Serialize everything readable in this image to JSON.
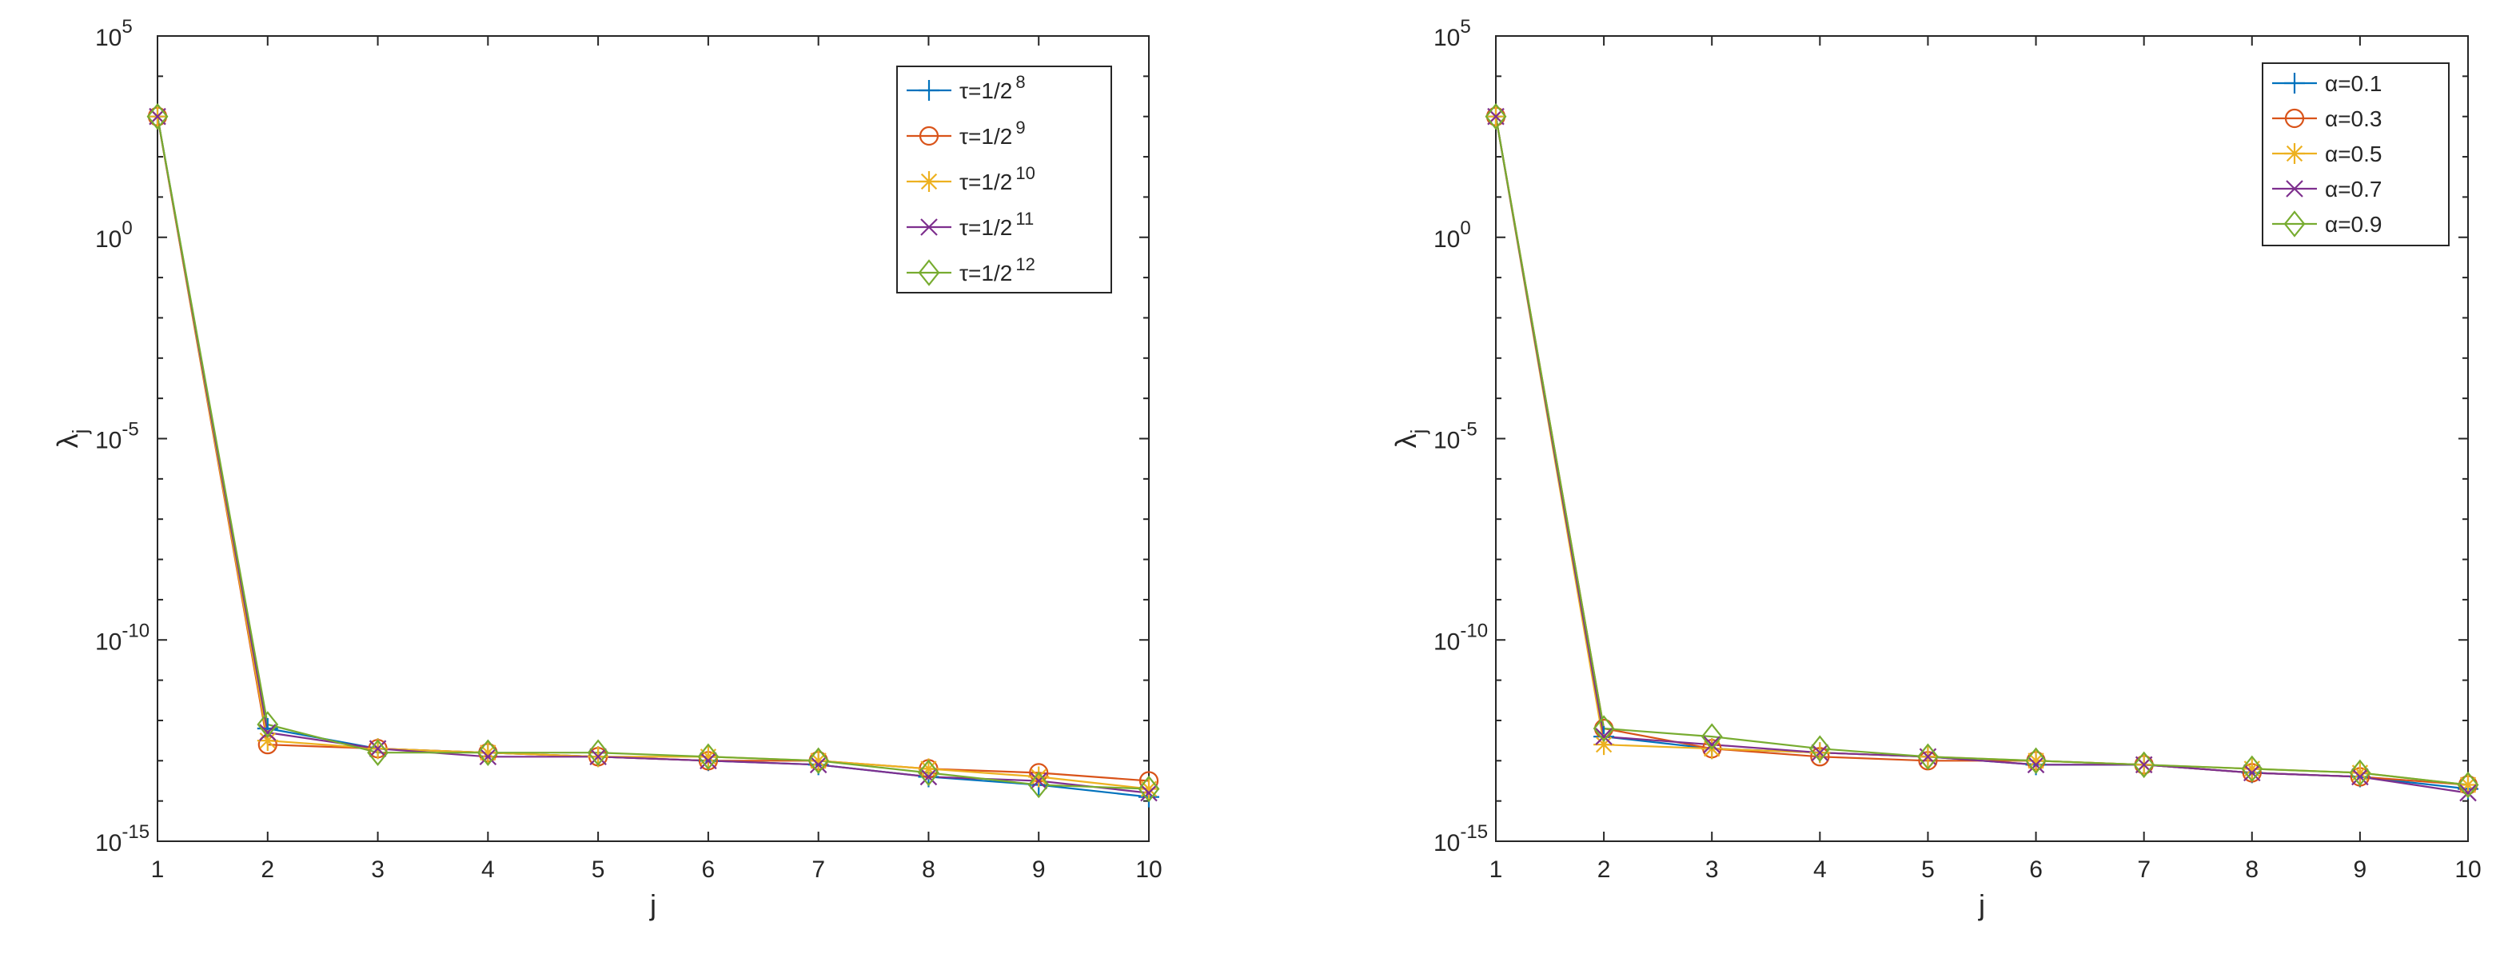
{
  "chart_data": [
    {
      "type": "line",
      "title": "",
      "xlabel": "j",
      "ylabel_base": "λ",
      "ylabel_sub": "j",
      "yscale": "log",
      "xlim": [
        1,
        10
      ],
      "ylim_exp": [
        -15,
        5
      ],
      "x_ticks": [
        1,
        2,
        3,
        4,
        5,
        6,
        7,
        8,
        9,
        10
      ],
      "y_tick_exps": [
        -15,
        -10,
        -5,
        0,
        5
      ],
      "grid": false,
      "legend_position": "top-right",
      "x": [
        1,
        2,
        3,
        4,
        5,
        6,
        7,
        8,
        9,
        10
      ],
      "series": [
        {
          "label_base": "τ=1/2",
          "label_sup": "8",
          "marker": "plus",
          "color": "#0072BD",
          "log10_values": [
            3.0,
            -12.2,
            -12.7,
            -12.8,
            -12.9,
            -13.0,
            -13.1,
            -13.4,
            -13.6,
            -13.9
          ]
        },
        {
          "label_base": "τ=1/2",
          "label_sup": "9",
          "marker": "circle",
          "color": "#D95319",
          "log10_values": [
            3.0,
            -12.6,
            -12.7,
            -12.8,
            -12.9,
            -13.0,
            -13.0,
            -13.2,
            -13.3,
            -13.5
          ]
        },
        {
          "label_base": "τ=1/2",
          "label_sup": "10",
          "marker": "star",
          "color": "#EDB120",
          "log10_values": [
            3.0,
            -12.5,
            -12.7,
            -12.8,
            -12.9,
            -12.9,
            -13.0,
            -13.2,
            -13.4,
            -13.7
          ]
        },
        {
          "label_base": "τ=1/2",
          "label_sup": "11",
          "marker": "x",
          "color": "#7E2F8E",
          "log10_values": [
            3.0,
            -12.3,
            -12.7,
            -12.9,
            -12.9,
            -13.0,
            -13.1,
            -13.4,
            -13.5,
            -13.8
          ]
        },
        {
          "label_base": "τ=1/2",
          "label_sup": "12",
          "marker": "diamond",
          "color": "#77AC30",
          "log10_values": [
            3.0,
            -12.1,
            -12.8,
            -12.8,
            -12.8,
            -12.9,
            -13.0,
            -13.3,
            -13.6,
            -13.7
          ]
        }
      ]
    },
    {
      "type": "line",
      "title": "",
      "xlabel": "j",
      "ylabel_base": "λ",
      "ylabel_sub": "j",
      "yscale": "log",
      "xlim": [
        1,
        10
      ],
      "ylim_exp": [
        -15,
        5
      ],
      "x_ticks": [
        1,
        2,
        3,
        4,
        5,
        6,
        7,
        8,
        9,
        10
      ],
      "y_tick_exps": [
        -15,
        -10,
        -5,
        0,
        5
      ],
      "grid": false,
      "legend_position": "top-right",
      "x": [
        1,
        2,
        3,
        4,
        5,
        6,
        7,
        8,
        9,
        10
      ],
      "series": [
        {
          "label_base": "α=0.1",
          "label_sup": "",
          "marker": "plus",
          "color": "#0072BD",
          "log10_values": [
            3.0,
            -12.4,
            -12.7,
            -12.8,
            -12.9,
            -13.1,
            -13.1,
            -13.3,
            -13.4,
            -13.7
          ]
        },
        {
          "label_base": "α=0.3",
          "label_sup": "",
          "marker": "circle",
          "color": "#D95319",
          "log10_values": [
            3.0,
            -12.2,
            -12.7,
            -12.9,
            -13.0,
            -13.0,
            -13.1,
            -13.3,
            -13.4,
            -13.6
          ]
        },
        {
          "label_base": "α=0.5",
          "label_sup": "",
          "marker": "star",
          "color": "#EDB120",
          "log10_values": [
            3.0,
            -12.6,
            -12.7,
            -12.8,
            -12.9,
            -13.0,
            -13.1,
            -13.2,
            -13.3,
            -13.6
          ]
        },
        {
          "label_base": "α=0.7",
          "label_sup": "",
          "marker": "x",
          "color": "#7E2F8E",
          "log10_values": [
            3.0,
            -12.4,
            -12.6,
            -12.8,
            -12.9,
            -13.1,
            -13.1,
            -13.3,
            -13.4,
            -13.8
          ]
        },
        {
          "label_base": "α=0.9",
          "label_sup": "",
          "marker": "diamond",
          "color": "#77AC30",
          "log10_values": [
            3.0,
            -12.2,
            -12.4,
            -12.7,
            -12.9,
            -13.0,
            -13.1,
            -13.2,
            -13.3,
            -13.6
          ]
        }
      ]
    }
  ]
}
